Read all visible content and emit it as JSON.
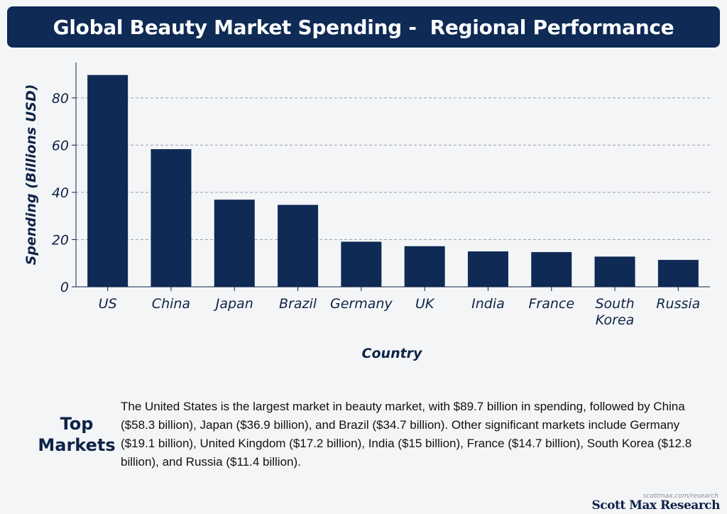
{
  "header": {
    "title": "Global Beauty Market Spending -  Regional Performance"
  },
  "chart_data": {
    "type": "bar",
    "title": "Global Beauty Market Spending -  Regional Performance",
    "xlabel": "Country",
    "ylabel": "Spending (Billions USD)",
    "categories": [
      "US",
      "China",
      "Japan",
      "Brazil",
      "Germany",
      "UK",
      "India",
      "France",
      "South Korea",
      "Russia"
    ],
    "values": [
      89.7,
      58.3,
      36.9,
      34.7,
      19.1,
      17.2,
      15.0,
      14.7,
      12.8,
      11.4
    ],
    "ylim": [
      0,
      95
    ],
    "yticks": [
      "0",
      "20",
      "40",
      "60",
      "80"
    ],
    "grid": true,
    "bar_color": "#0e2a55"
  },
  "summary": {
    "heading": "Top Markets",
    "text": "The United States is the largest market in beauty market, with $89.7 billion in spending, followed by China ($58.3 billion), Japan ($36.9 billion), and Brazil ($34.7 billion). Other significant markets include Germany ($19.1 billion), United Kingdom ($17.2 billion), India ($15 billion), France ($14.7 billion), South Korea ($12.8 billion), and Russia ($11.4 billion)."
  },
  "footer": {
    "url": "scottmax.com/research",
    "brand": "Scott Max Research"
  }
}
